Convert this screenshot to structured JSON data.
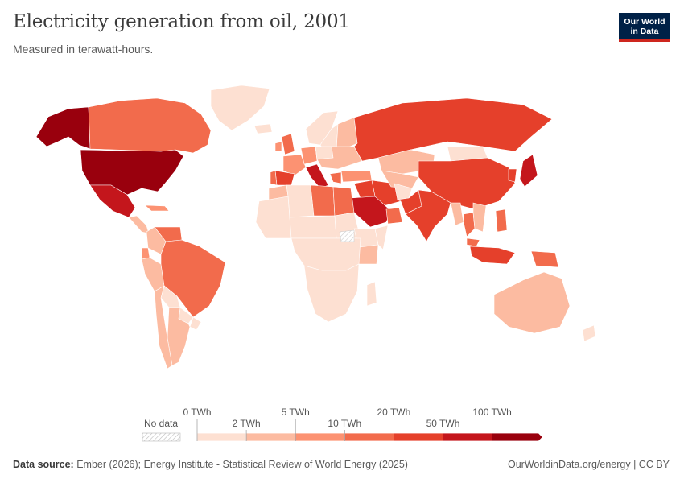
{
  "header": {
    "title": "Electricity generation from oil, 2001",
    "subtitle": "Measured in terawatt-hours."
  },
  "logo": {
    "line1": "Our World",
    "line2": "in Data"
  },
  "legend": {
    "no_data_label": "No data",
    "top_labels": [
      "0 TWh",
      "5 TWh",
      "20 TWh",
      "100 TWh"
    ],
    "bottom_labels": [
      "2 TWh",
      "10 TWh",
      "50 TWh"
    ],
    "colors": [
      "#fde0d2",
      "#fcbba1",
      "#fc9272",
      "#f26b4c",
      "#e5402b",
      "#c4161c",
      "#99000d"
    ]
  },
  "footer": {
    "source_label": "Data source:",
    "source_text": "Ember (2026); Energy Institute - Statistical Review of World Energy (2025)",
    "right_text": "OurWorldinData.org/energy | CC BY"
  },
  "colors": {
    "no_data": "#ffffff",
    "border": "#ffffff",
    "accent_logo": "#002147",
    "accent_logo_bar": "#ce261e"
  },
  "map_regions": [
    {
      "name": "united-states",
      "bin": 6
    },
    {
      "name": "alaska",
      "bin": 6
    },
    {
      "name": "canada",
      "bin": 3
    },
    {
      "name": "greenland",
      "bin": 0
    },
    {
      "name": "mexico",
      "bin": 5
    },
    {
      "name": "central-america",
      "bin": 1
    },
    {
      "name": "caribbean",
      "bin": 2
    },
    {
      "name": "venezuela",
      "bin": 3
    },
    {
      "name": "colombia",
      "bin": 1
    },
    {
      "name": "ecuador",
      "bin": 2
    },
    {
      "name": "peru",
      "bin": 1
    },
    {
      "name": "brazil",
      "bin": 3
    },
    {
      "name": "bolivia",
      "bin": 0
    },
    {
      "name": "paraguay",
      "bin": 0
    },
    {
      "name": "argentina",
      "bin": 1
    },
    {
      "name": "chile",
      "bin": 1
    },
    {
      "name": "uruguay",
      "bin": 0
    },
    {
      "name": "iceland",
      "bin": 0
    },
    {
      "name": "uk",
      "bin": 3
    },
    {
      "name": "ireland",
      "bin": 2
    },
    {
      "name": "norway",
      "bin": 0
    },
    {
      "name": "sweden",
      "bin": 0
    },
    {
      "name": "finland",
      "bin": 1
    },
    {
      "name": "france",
      "bin": 2
    },
    {
      "name": "spain",
      "bin": 4
    },
    {
      "name": "portugal",
      "bin": 3
    },
    {
      "name": "italy",
      "bin": 5
    },
    {
      "name": "germany",
      "bin": 2
    },
    {
      "name": "poland",
      "bin": 0
    },
    {
      "name": "eastern-europe",
      "bin": 1
    },
    {
      "name": "greece",
      "bin": 3
    },
    {
      "name": "turkey",
      "bin": 2
    },
    {
      "name": "russia",
      "bin": 4
    },
    {
      "name": "kazakhstan",
      "bin": 1
    },
    {
      "name": "mongolia",
      "bin": 0
    },
    {
      "name": "china",
      "bin": 4
    },
    {
      "name": "korea",
      "bin": 4
    },
    {
      "name": "japan",
      "bin": 5
    },
    {
      "name": "iran",
      "bin": 4
    },
    {
      "name": "iraq",
      "bin": 4
    },
    {
      "name": "saudi-arabia",
      "bin": 5
    },
    {
      "name": "gulf-states",
      "bin": 3
    },
    {
      "name": "central-asia",
      "bin": 1
    },
    {
      "name": "afghanistan",
      "bin": 0
    },
    {
      "name": "pakistan",
      "bin": 4
    },
    {
      "name": "india",
      "bin": 4
    },
    {
      "name": "myanmar",
      "bin": 1
    },
    {
      "name": "thailand",
      "bin": 3
    },
    {
      "name": "indochina",
      "bin": 1
    },
    {
      "name": "philippines",
      "bin": 3
    },
    {
      "name": "malaysia",
      "bin": 3
    },
    {
      "name": "indonesia",
      "bin": 4
    },
    {
      "name": "papua",
      "bin": 3
    },
    {
      "name": "australia",
      "bin": 1
    },
    {
      "name": "new-zealand",
      "bin": 0
    },
    {
      "name": "morocco",
      "bin": 1
    },
    {
      "name": "algeria",
      "bin": 0
    },
    {
      "name": "libya",
      "bin": 3
    },
    {
      "name": "egypt",
      "bin": 3
    },
    {
      "name": "west-africa",
      "bin": 0
    },
    {
      "name": "sahel",
      "bin": 0
    },
    {
      "name": "sudan",
      "bin": 0
    },
    {
      "name": "ethiopia",
      "bin": 0
    },
    {
      "name": "horn-of-africa",
      "bin": 0
    },
    {
      "name": "kenya",
      "bin": 1
    },
    {
      "name": "central-africa",
      "bin": 0
    },
    {
      "name": "southern-africa",
      "bin": 0
    },
    {
      "name": "madagascar",
      "bin": 0
    }
  ]
}
